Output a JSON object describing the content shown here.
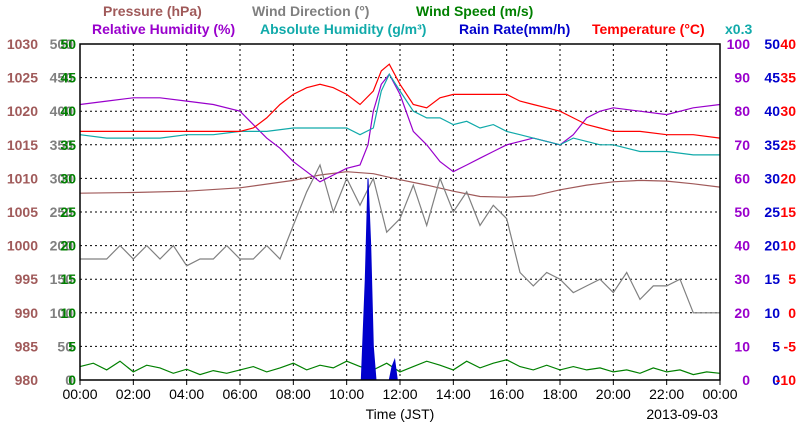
{
  "chart_data": {
    "type": "line",
    "date_label": "2013-09-03",
    "xlabel": "Time (JST)",
    "x_ticks": [
      "00:00",
      "02:00",
      "04:00",
      "06:00",
      "08:00",
      "10:00",
      "12:00",
      "14:00",
      "16:00",
      "18:00",
      "20:00",
      "22:00",
      "00:00"
    ],
    "legend_row1": [
      {
        "text": "Pressure (hPa)",
        "color": "#a05a5a"
      },
      {
        "text": "Wind Direction (°)",
        "color": "#808080"
      },
      {
        "text": "Wind Speed (m/s)",
        "color": "#008000"
      }
    ],
    "legend_row2": [
      {
        "text": "Relative Humidity (%)",
        "color": "#9900cc"
      },
      {
        "text": "Absolute Humidity (g/m³)",
        "color": "#11aaaa"
      },
      {
        "text": "Rain Rate(mm/h)",
        "color": "#0000cc"
      },
      {
        "text": "Temperature (°C)",
        "color": "#ff0000"
      }
    ],
    "multiplier_note": "x0.3",
    "axes": [
      {
        "name": "Pressure (hPa)",
        "color": "#a05a5a",
        "range": [
          980,
          1030
        ],
        "ticks": [
          "980",
          "985",
          "990",
          "995",
          "1000",
          "1005",
          "1010",
          "1015",
          "1020",
          "1025",
          "1030"
        ]
      },
      {
        "name": "Wind Direction (°)",
        "color": "#808080",
        "range": [
          0,
          500
        ],
        "ticks": [
          "0",
          "50",
          "100",
          "150",
          "200",
          "250",
          "300",
          "350",
          "400",
          "450",
          "500"
        ]
      },
      {
        "name": "Wind Speed (m/s)",
        "color": "#008000",
        "range": [
          0,
          50
        ],
        "ticks": [
          "0",
          "5",
          "10",
          "15",
          "20",
          "25",
          "30",
          "35",
          "40",
          "45",
          "50"
        ]
      },
      {
        "name": "Relative Humidity (%)",
        "color": "#9900cc",
        "range": [
          0,
          100
        ],
        "ticks": [
          "0",
          "10",
          "20",
          "30",
          "40",
          "50",
          "60",
          "70",
          "80",
          "90",
          "100"
        ]
      },
      {
        "name": "Rain Rate(mm/h)",
        "color": "#0000cc",
        "range": [
          0,
          50
        ],
        "ticks": [
          "0",
          "5",
          "10",
          "15",
          "20",
          "25",
          "30",
          "35",
          "40",
          "45",
          "50"
        ]
      },
      {
        "name": "Temperature (°C)",
        "color": "#ff0000",
        "range": [
          -10,
          40
        ],
        "ticks": [
          "-10",
          "-5",
          "0",
          "5",
          "10",
          "15",
          "20",
          "25",
          "30",
          "35",
          "40"
        ]
      }
    ],
    "series": [
      {
        "name": "Pressure (hPa)",
        "color": "#a05a5a",
        "x": [
          0,
          2,
          4,
          6,
          8,
          9,
          10,
          11,
          12,
          13,
          14,
          15,
          16,
          17,
          18,
          19,
          20,
          21,
          22,
          23,
          24
        ],
        "y": [
          1007.8,
          1007.9,
          1008.1,
          1008.6,
          1009.7,
          1010.5,
          1011.0,
          1010.7,
          1009.8,
          1009.0,
          1008.1,
          1007.3,
          1007.2,
          1007.4,
          1008.3,
          1009.0,
          1009.5,
          1009.7,
          1009.6,
          1009.2,
          1008.7
        ]
      },
      {
        "name": "Wind Direction (°)",
        "color": "#808080",
        "x": [
          0,
          1,
          1.5,
          2,
          2.5,
          3,
          3.5,
          4,
          4.5,
          5,
          5.5,
          6,
          6.5,
          7,
          7.5,
          8,
          8.5,
          9,
          9.5,
          10,
          10.5,
          11,
          11.5,
          12,
          12.5,
          13,
          13.5,
          14,
          14.5,
          15,
          15.5,
          16,
          16.5,
          17,
          17.5,
          18,
          18.5,
          19,
          19.5,
          20,
          20.5,
          21,
          21.5,
          22,
          22.5,
          23,
          24
        ],
        "y": [
          180,
          180,
          200,
          180,
          200,
          180,
          200,
          170,
          180,
          180,
          200,
          180,
          180,
          200,
          180,
          230,
          280,
          320,
          250,
          300,
          260,
          300,
          220,
          240,
          290,
          230,
          300,
          250,
          280,
          230,
          260,
          240,
          160,
          140,
          160,
          150,
          130,
          140,
          150,
          130,
          160,
          120,
          140,
          140,
          150,
          100,
          100
        ]
      },
      {
        "name": "Wind Speed (m/s)",
        "color": "#008000",
        "x": [
          0,
          0.5,
          1,
          1.5,
          2,
          2.5,
          3,
          3.5,
          4,
          4.5,
          5,
          5.5,
          6,
          6.5,
          7,
          7.5,
          8,
          8.5,
          9,
          9.5,
          10,
          10.5,
          11,
          11.5,
          12,
          12.5,
          13,
          13.5,
          14,
          14.5,
          15,
          15.5,
          16,
          16.5,
          17,
          17.5,
          18,
          18.5,
          19,
          19.5,
          20,
          20.5,
          21,
          21.5,
          22,
          22.5,
          23,
          23.5,
          24
        ],
        "y": [
          2.0,
          2.5,
          1.5,
          2.8,
          1.2,
          2.2,
          1.8,
          1.0,
          1.6,
          0.8,
          1.4,
          1.0,
          1.5,
          2.0,
          1.2,
          1.8,
          2.5,
          1.5,
          2.2,
          1.8,
          2.8,
          2.0,
          1.5,
          2.5,
          1.2,
          2.0,
          2.8,
          2.2,
          1.5,
          2.8,
          1.8,
          2.5,
          3.0,
          2.0,
          1.5,
          2.2,
          1.5,
          2.0,
          1.5,
          1.8,
          1.2,
          1.5,
          1.0,
          1.8,
          1.2,
          1.5,
          0.8,
          1.2,
          1.0
        ]
      },
      {
        "name": "Relative Humidity (%)",
        "color": "#9900cc",
        "x": [
          0,
          1,
          2,
          3,
          4,
          5,
          6,
          6.5,
          7,
          7.5,
          8,
          8.5,
          9,
          9.5,
          10,
          10.5,
          10.8,
          11,
          11.3,
          11.6,
          12,
          12.5,
          13,
          13.5,
          14,
          14.5,
          15,
          15.5,
          16,
          16.5,
          17,
          17.5,
          18,
          18.5,
          19,
          19.5,
          20,
          21,
          22,
          23,
          24
        ],
        "y": [
          82,
          83,
          84,
          84,
          83,
          82,
          80,
          76,
          72,
          69,
          65,
          62,
          59,
          61,
          63,
          64,
          70,
          80,
          88,
          91,
          85,
          74,
          70,
          65,
          62,
          64,
          66,
          68,
          70,
          71,
          72,
          71,
          70,
          73,
          78,
          80,
          81,
          80,
          79,
          81,
          82
        ]
      },
      {
        "name": "Absolute Humidity (g/m³)",
        "color": "#11aaaa",
        "x": [
          0,
          1,
          2,
          3,
          4,
          5,
          6,
          7,
          8,
          9,
          10,
          10.5,
          11,
          11.3,
          11.6,
          12,
          12.5,
          13,
          13.5,
          14,
          14.5,
          15,
          15.5,
          16,
          16.5,
          17,
          17.5,
          18,
          18.5,
          19,
          19.5,
          20,
          21,
          22,
          23,
          24
        ],
        "y": [
          73,
          72,
          72,
          72,
          73,
          73,
          74,
          74,
          75,
          75,
          75,
          73,
          75,
          86,
          91,
          86,
          80,
          78,
          78,
          76,
          77,
          75,
          76,
          74,
          73,
          72,
          71,
          70,
          72,
          71,
          70,
          70,
          68,
          68,
          67,
          67
        ]
      },
      {
        "name": "Rain Rate(mm/h)",
        "color": "#0000cc",
        "type": "area",
        "x": [
          0,
          10.55,
          10.7,
          10.8,
          10.9,
          11.0,
          11.1,
          11.2,
          11.6,
          11.7,
          11.8,
          11.9,
          12.0,
          24
        ],
        "y": [
          0,
          0,
          15,
          30,
          20,
          5,
          0,
          0,
          0,
          2,
          3,
          0,
          0,
          0
        ]
      },
      {
        "name": "Temperature (°C)",
        "color": "#ff0000",
        "x": [
          0,
          1,
          2,
          3,
          4,
          5,
          6,
          6.5,
          7,
          7.5,
          8,
          8.5,
          9,
          9.5,
          10,
          10.5,
          11,
          11.3,
          11.6,
          12,
          12.5,
          13,
          13.5,
          14,
          14.5,
          15,
          15.5,
          16,
          16.5,
          17,
          17.5,
          18,
          18.5,
          19,
          19.5,
          20,
          21,
          22,
          23,
          24
        ],
        "y": [
          27,
          27,
          27,
          27,
          27,
          27,
          27,
          27.5,
          29,
          31,
          32.5,
          33.5,
          34,
          33.5,
          32.5,
          31,
          33,
          36,
          37,
          34,
          31,
          30.5,
          32,
          32.5,
          32.5,
          32.5,
          32.5,
          32.5,
          31.5,
          31,
          30.5,
          30,
          29,
          28,
          27.5,
          27,
          27,
          26.5,
          26.5,
          26
        ]
      }
    ]
  }
}
